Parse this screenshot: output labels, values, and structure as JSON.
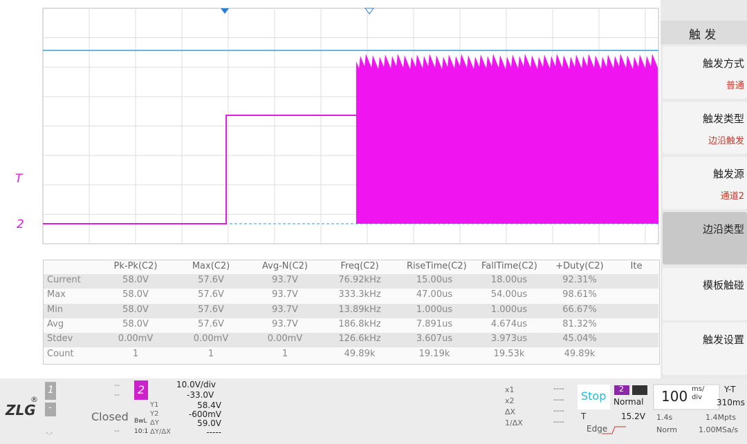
{
  "screen": {
    "trigger_marker": "T",
    "channel_marker": "2"
  },
  "menu": {
    "title": "触 发",
    "items": [
      {
        "label": "触发方式",
        "value": "普通"
      },
      {
        "label": "触发类型",
        "value": "边沿触发"
      },
      {
        "label": "触发源",
        "value": "通道2"
      },
      {
        "label": "边沿类型"
      },
      {
        "label": "模板触碰"
      },
      {
        "label": "触发设置"
      }
    ]
  },
  "table": {
    "header": [
      "Pk-Pk(C2)",
      "Max(C2)",
      "Avg-N(C2)",
      "Freq(C2)",
      "RiseTime(C2)",
      "FallTime(C2)",
      "+Duty(C2)",
      "Ite"
    ],
    "rows": [
      [
        "Current",
        "58.0V",
        "57.6V",
        "93.7V",
        "76.92kHz",
        "15.00us",
        "18.00us",
        "92.31%"
      ],
      [
        "Max",
        "58.0V",
        "57.6V",
        "93.7V",
        "333.3kHz",
        "47.00us",
        "54.00us",
        "98.61%"
      ],
      [
        "Min",
        "58.0V",
        "57.6V",
        "93.7V",
        "13.89kHz",
        "1.000us",
        "1.000us",
        "66.67%"
      ],
      [
        "Avg",
        "58.0V",
        "57.6V",
        "93.7V",
        "186.8kHz",
        "7.891us",
        "4.674us",
        "81.32%"
      ],
      [
        "Stdev",
        "0.00mV",
        "0.00mV",
        "0.00mV",
        "126.6kHz",
        "3.607us",
        "3.973us",
        "45.04%"
      ],
      [
        "Count",
        "1",
        "1",
        "1",
        "49.89k",
        "19.19k",
        "19.53k",
        "49.89k"
      ]
    ]
  },
  "status": {
    "logo": "ZLG",
    "logo_mark": "®",
    "ch1": {
      "number": "1",
      "line1": "--",
      "line2": "--",
      "sub": "-",
      "mode": "Closed",
      "foot1": "-.-",
      "foot2": "--"
    },
    "ch2": {
      "number": "2",
      "scale": "10.0V/div",
      "offset": "-33.0V",
      "bw": "BwL",
      "probe": "10:1",
      "labels": [
        "Y1",
        "Y2",
        "ΔY",
        "ΔY/ΔX"
      ],
      "values": [
        "58.4V",
        "-600mV",
        "59.0V",
        "-----"
      ]
    },
    "cursors": {
      "labels": [
        "x1",
        "x2",
        "ΔX",
        "1/ΔX"
      ],
      "values": [
        "----",
        "----",
        "----",
        "----"
      ]
    },
    "trigger": {
      "state": "Stop",
      "source": "2",
      "mode": "Normal",
      "level_label": "T",
      "level": "15.2V",
      "type": "Edge"
    },
    "timebase": {
      "value": "100",
      "unit_top": "ms/",
      "unit_bottom": "div",
      "mode": "Y-T",
      "delay": "310ms",
      "span": "1.4s",
      "points": "1.4Mpts",
      "acq": "Norm",
      "rate": "1.00MSa/s"
    }
  }
}
